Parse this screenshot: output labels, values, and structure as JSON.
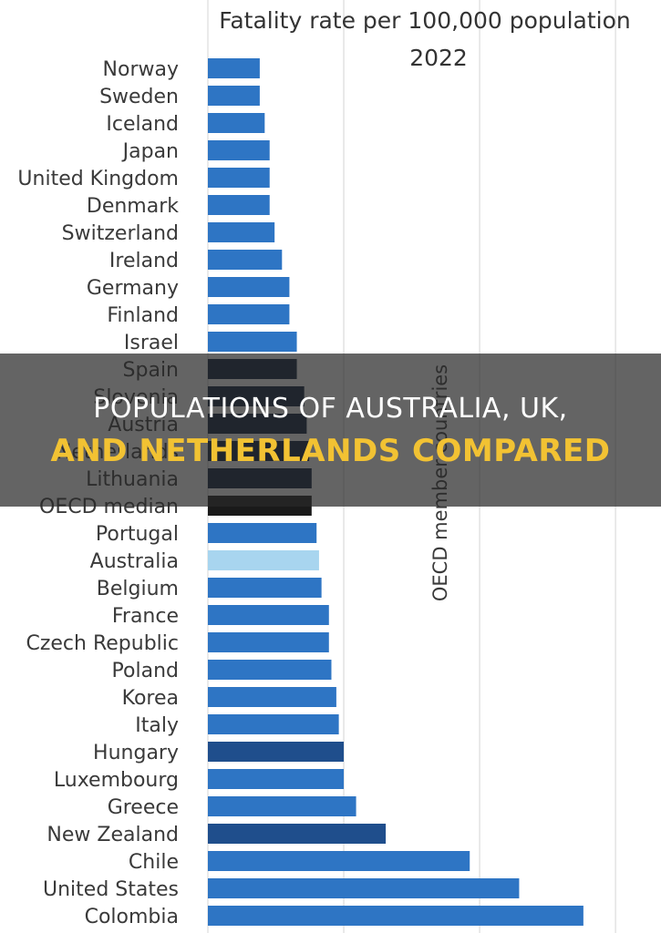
{
  "banner": {
    "line1": "POPULATIONS OF AUSTRALIA, UK,",
    "line2": "AND NETHERLANDS COMPARED"
  },
  "chart_data": {
    "type": "bar",
    "orientation": "horizontal",
    "title": "Fatality rate per 100,000 population",
    "subtitle": "2022",
    "side_annotation": "OECD member countries",
    "categories": [
      "Norway",
      "Sweden",
      "Iceland",
      "Japan",
      "United Kingdom",
      "Denmark",
      "Switzerland",
      "Ireland",
      "Germany",
      "Finland",
      "Israel",
      "Spain",
      "Slovenia",
      "Austria",
      "Netherlands",
      "Lithuania",
      "OECD median",
      "Portugal",
      "Australia",
      "Belgium",
      "France",
      "Czech Republic",
      "Poland",
      "Korea",
      "Italy",
      "Hungary",
      "Luxembourg",
      "Greece",
      "New Zealand",
      "Chile",
      "United States",
      "Colombia"
    ],
    "values": [
      2.1,
      2.1,
      2.3,
      2.5,
      2.5,
      2.5,
      2.7,
      3.0,
      3.3,
      3.3,
      3.6,
      3.6,
      3.9,
      4.0,
      4.1,
      4.2,
      4.2,
      4.4,
      4.5,
      4.6,
      4.9,
      4.9,
      5.0,
      5.2,
      5.3,
      5.5,
      5.5,
      6.0,
      7.2,
      10.6,
      12.6,
      15.2
    ],
    "colors": {
      "default": "#2e75c4",
      "dark": "#1f4e8c",
      "navy": "#0c1f3c",
      "oecd_median": "#1a1a1a",
      "australia": "#a8d5ef"
    },
    "bar_color_keys": [
      "default",
      "default",
      "default",
      "default",
      "default",
      "default",
      "default",
      "default",
      "default",
      "default",
      "default",
      "navy",
      "navy",
      "navy",
      "navy",
      "navy",
      "oecd_median",
      "default",
      "australia",
      "default",
      "default",
      "default",
      "default",
      "default",
      "default",
      "dark",
      "default",
      "default",
      "dark",
      "default",
      "default",
      "default"
    ],
    "xlim": [
      0,
      15.5
    ],
    "grid": true
  }
}
